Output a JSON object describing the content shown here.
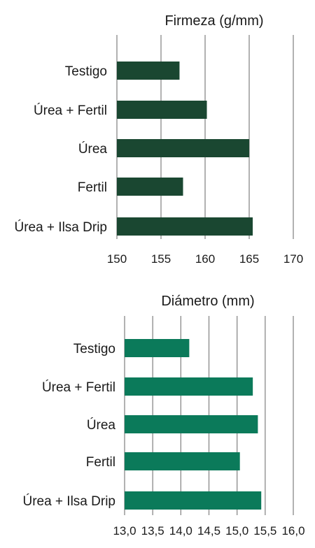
{
  "chart_data": [
    {
      "type": "bar",
      "orientation": "horizontal",
      "title": "Firmeza (g/mm)",
      "categories": [
        "Testigo",
        "Úrea + Fertil",
        "Úrea",
        "Fertil",
        "Úrea + Ilsa Drip"
      ],
      "values": [
        157.1,
        160.2,
        165.0,
        157.5,
        165.4
      ],
      "xlim": [
        150,
        170
      ],
      "xticks": [
        150,
        155,
        160,
        165,
        170
      ],
      "xtick_labels": [
        "150",
        "155",
        "160",
        "165",
        "170"
      ],
      "grid": true,
      "color": "#1a4731"
    },
    {
      "type": "bar",
      "orientation": "horizontal",
      "title": "Diámetro (mm)",
      "categories": [
        "Testigo",
        "Úrea + Fertil",
        "Úrea",
        "Fertil",
        "Úrea + Ilsa Drip"
      ],
      "values": [
        14.15,
        15.28,
        15.37,
        15.05,
        15.43
      ],
      "xlim": [
        13.0,
        16.0
      ],
      "xticks": [
        13.0,
        13.5,
        14.0,
        14.5,
        15.0,
        15.5,
        16.0
      ],
      "xtick_labels": [
        "13,0",
        "13,5",
        "14,0",
        "14,5",
        "15,0",
        "15,5",
        "16,0"
      ],
      "grid": true,
      "color": "#0b7a5a"
    }
  ]
}
